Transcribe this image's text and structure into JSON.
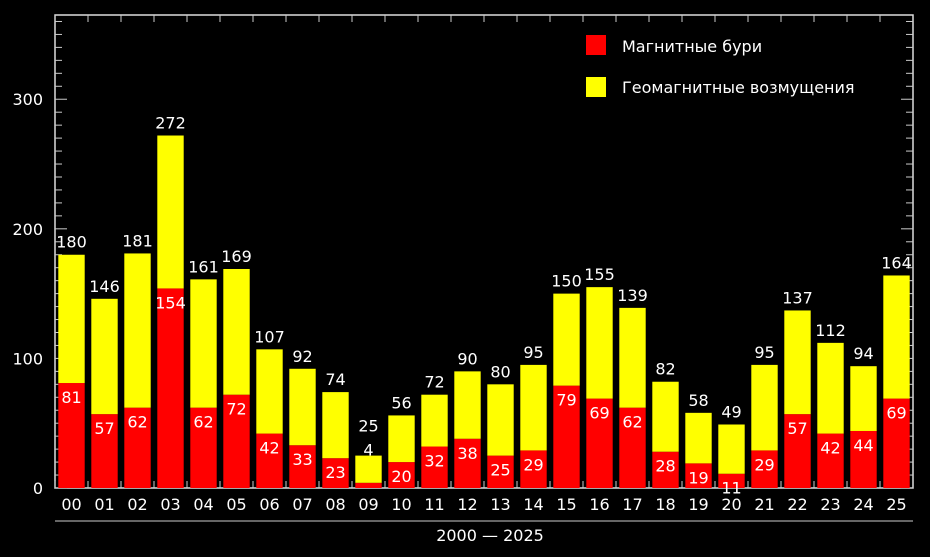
{
  "chart_data": {
    "type": "bar",
    "stacked": true,
    "xlabel": "2000 — 2025",
    "ylabel": "",
    "ylim": [
      0,
      365
    ],
    "yticks": [
      0,
      100,
      200,
      300
    ],
    "grid": false,
    "legend_placement": "top-right",
    "categories": [
      "00",
      "01",
      "02",
      "03",
      "04",
      "05",
      "06",
      "07",
      "08",
      "09",
      "10",
      "11",
      "12",
      "13",
      "14",
      "15",
      "16",
      "17",
      "18",
      "19",
      "20",
      "21",
      "22",
      "23",
      "24",
      "25"
    ],
    "series": [
      {
        "name": "Магнитные бури",
        "color": "#ff0000",
        "values": [
          81,
          57,
          62,
          154,
          62,
          72,
          42,
          33,
          23,
          4,
          20,
          32,
          38,
          25,
          29,
          79,
          69,
          62,
          28,
          19,
          11,
          29,
          57,
          42,
          44,
          69
        ]
      },
      {
        "name": "Геомагнитные возмущения",
        "color": "#ffff00",
        "values": [
          99,
          89,
          119,
          118,
          99,
          97,
          65,
          59,
          51,
          21,
          36,
          40,
          52,
          55,
          66,
          71,
          86,
          77,
          54,
          39,
          38,
          66,
          80,
          70,
          50,
          95
        ]
      }
    ],
    "totals": [
      180,
      146,
      181,
      272,
      161,
      169,
      107,
      92,
      74,
      25,
      56,
      72,
      90,
      80,
      95,
      150,
      155,
      139,
      82,
      58,
      49,
      95,
      137,
      112,
      94,
      164
    ]
  }
}
